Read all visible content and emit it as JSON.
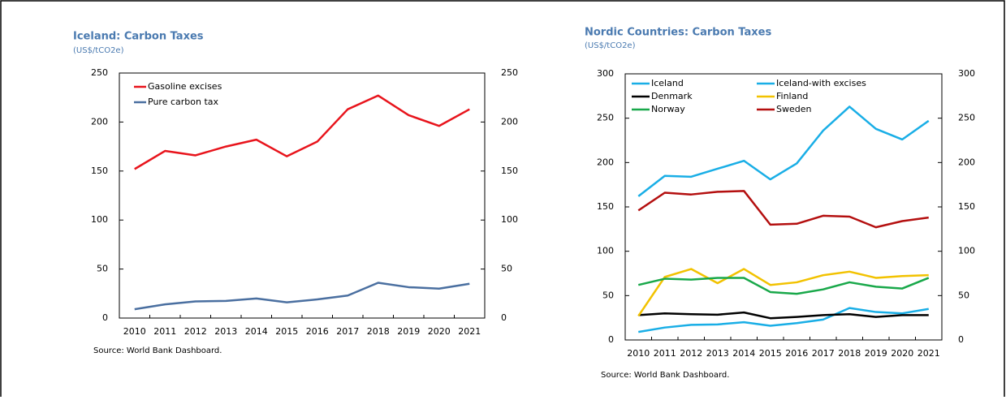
{
  "chart_data": [
    {
      "type": "line",
      "title": "Iceland: Carbon Taxes",
      "subtitle": "(US$/tCO2e)",
      "source": "Source: World Bank Dashboard.",
      "categories": [
        "2010",
        "2011",
        "2012",
        "2013",
        "2014",
        "2015",
        "2016",
        "2017",
        "2018",
        "2019",
        "2020",
        "2021"
      ],
      "series": [
        {
          "name": "Gasoline excises",
          "color": "#e8141c",
          "values": [
            152,
            170.5,
            166,
            175,
            182,
            165,
            180,
            213,
            227,
            207,
            196,
            213
          ]
        },
        {
          "name": "Pure carbon tax",
          "color": "#4a6fa0",
          "values": [
            9,
            14,
            17,
            17.5,
            20,
            16,
            19,
            23,
            36,
            31.5,
            30,
            35
          ]
        }
      ],
      "ylim": [
        0,
        250
      ],
      "yticks": [
        0,
        50,
        100,
        150,
        200,
        250
      ],
      "y2lim": [
        0,
        250
      ],
      "y2ticks": [
        0,
        50,
        100,
        150,
        200,
        250
      ]
    },
    {
      "type": "line",
      "title": "Nordic Countries: Carbon Taxes",
      "subtitle": "(US$/tCO2e)",
      "source": "Source: World Bank Dashboard.",
      "categories": [
        "2010",
        "2011",
        "2012",
        "2013",
        "2014",
        "2015",
        "2016",
        "2017",
        "2018",
        "2019",
        "2020",
        "2021"
      ],
      "series": [
        {
          "name": "Iceland",
          "color": "#19aee6",
          "values": [
            9,
            14,
            17,
            17.5,
            20,
            16,
            19,
            23,
            36,
            31.5,
            30,
            35
          ]
        },
        {
          "name": "Iceland-with excises",
          "color": "#19aee6",
          "values": [
            162,
            185,
            184,
            193,
            202,
            181,
            199,
            236,
            263,
            238,
            226,
            247
          ]
        },
        {
          "name": "Denmark",
          "color": "#000000",
          "values": [
            28,
            30,
            29,
            28.5,
            31,
            24.5,
            26,
            28,
            29,
            26,
            28,
            28
          ]
        },
        {
          "name": "Finland",
          "color": "#f2c200",
          "values": [
            27,
            71,
            80,
            64,
            80,
            62,
            65,
            73,
            77,
            70,
            72,
            73
          ]
        },
        {
          "name": "Norway",
          "color": "#19a84a",
          "values": [
            62,
            69,
            68,
            70,
            70,
            54,
            52,
            57,
            65,
            60,
            58,
            70
          ]
        },
        {
          "name": "Sweden",
          "color": "#b40f0f",
          "values": [
            146,
            166,
            164,
            167,
            168,
            130,
            131,
            140,
            139,
            127,
            134,
            138
          ]
        }
      ],
      "ylim": [
        0,
        300
      ],
      "yticks": [
        0,
        50,
        100,
        150,
        200,
        250,
        300
      ],
      "y2lim": [
        0,
        300
      ],
      "y2ticks": [
        0,
        50,
        100,
        150,
        200,
        250,
        300
      ]
    }
  ]
}
